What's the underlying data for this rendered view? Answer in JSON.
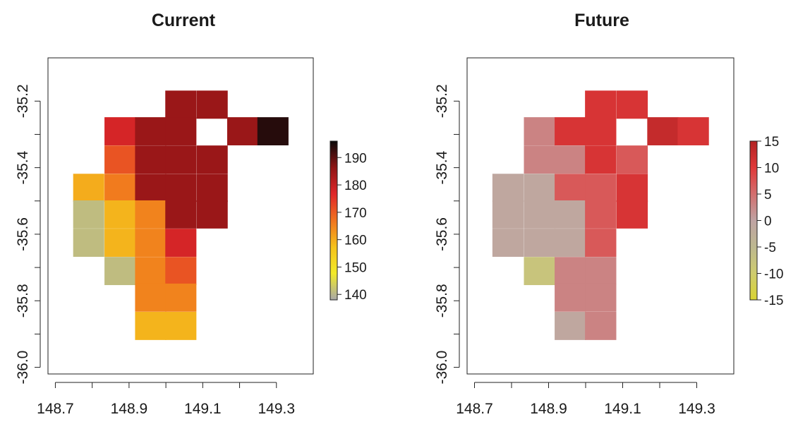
{
  "chart_data": [
    {
      "type": "heatmap",
      "title": "Current",
      "xlabel": "",
      "ylabel": "",
      "xlim": [
        148.68,
        149.4
      ],
      "ylim": [
        -36.02,
        -35.07
      ],
      "x_ticks": [
        "148.7",
        "148.9",
        "149.1",
        "149.3"
      ],
      "x_tick_values": [
        148.7,
        148.9,
        149.1,
        149.3
      ],
      "x_minor_ticks": [
        148.8,
        149.0,
        149.2
      ],
      "y_ticks": [
        "-35.2",
        "-35.4",
        "-35.6",
        "-35.8",
        "-36.0"
      ],
      "y_tick_values": [
        -35.2,
        -35.4,
        -35.6,
        -35.8,
        -36.0
      ],
      "y_minor_ticks": [
        -35.3,
        -35.5,
        -35.7,
        -35.9
      ],
      "grid": false,
      "cell_size": [
        0.0833,
        0.0833
      ],
      "cells": [
        {
          "x": 149.04,
          "y": -35.21,
          "v": 185
        },
        {
          "x": 149.125,
          "y": -35.21,
          "v": 185
        },
        {
          "x": 148.875,
          "y": -35.29,
          "v": 178
        },
        {
          "x": 148.958,
          "y": -35.29,
          "v": 185
        },
        {
          "x": 149.04,
          "y": -35.29,
          "v": 185
        },
        {
          "x": 149.208,
          "y": -35.29,
          "v": 185
        },
        {
          "x": 149.29,
          "y": -35.29,
          "v": 194
        },
        {
          "x": 148.875,
          "y": -35.375,
          "v": 171
        },
        {
          "x": 148.958,
          "y": -35.375,
          "v": 185
        },
        {
          "x": 149.04,
          "y": -35.375,
          "v": 185
        },
        {
          "x": 149.125,
          "y": -35.375,
          "v": 185
        },
        {
          "x": 148.79,
          "y": -35.46,
          "v": 160
        },
        {
          "x": 148.875,
          "y": -35.46,
          "v": 166
        },
        {
          "x": 148.958,
          "y": -35.46,
          "v": 185
        },
        {
          "x": 149.04,
          "y": -35.46,
          "v": 185
        },
        {
          "x": 149.125,
          "y": -35.46,
          "v": 185
        },
        {
          "x": 148.79,
          "y": -35.54,
          "v": 141
        },
        {
          "x": 148.875,
          "y": -35.54,
          "v": 159
        },
        {
          "x": 148.958,
          "y": -35.54,
          "v": 165
        },
        {
          "x": 149.04,
          "y": -35.54,
          "v": 185
        },
        {
          "x": 149.125,
          "y": -35.54,
          "v": 185
        },
        {
          "x": 148.79,
          "y": -35.625,
          "v": 141
        },
        {
          "x": 148.875,
          "y": -35.625,
          "v": 159
        },
        {
          "x": 148.958,
          "y": -35.625,
          "v": 165
        },
        {
          "x": 149.04,
          "y": -35.625,
          "v": 178
        },
        {
          "x": 148.875,
          "y": -35.71,
          "v": 141
        },
        {
          "x": 148.958,
          "y": -35.71,
          "v": 165
        },
        {
          "x": 149.04,
          "y": -35.71,
          "v": 171
        },
        {
          "x": 148.958,
          "y": -35.79,
          "v": 165
        },
        {
          "x": 149.04,
          "y": -35.79,
          "v": 165
        },
        {
          "x": 148.958,
          "y": -35.875,
          "v": 159
        },
        {
          "x": 149.04,
          "y": -35.875,
          "v": 159
        }
      ],
      "legend": {
        "range": [
          138,
          196
        ],
        "ticks": [
          140,
          150,
          160,
          170,
          180,
          190
        ],
        "tick_labels": [
          "140",
          "150",
          "160",
          "170",
          "180",
          "190"
        ],
        "colors": [
          "#a8a8a8",
          "#f2ea28",
          "#f5c21b",
          "#f0731e",
          "#e0272a",
          "#8f1515",
          "#0a0a0a"
        ]
      }
    },
    {
      "type": "heatmap",
      "title": "Future",
      "xlabel": "",
      "ylabel": "",
      "xlim": [
        148.68,
        149.4
      ],
      "ylim": [
        -36.02,
        -35.07
      ],
      "x_ticks": [
        "148.7",
        "148.9",
        "149.1",
        "149.3"
      ],
      "x_tick_values": [
        148.7,
        148.9,
        149.1,
        149.3
      ],
      "x_minor_ticks": [
        148.8,
        149.0,
        149.2
      ],
      "y_ticks": [
        "-35.2",
        "-35.4",
        "-35.6",
        "-35.8",
        "-36.0"
      ],
      "y_tick_values": [
        -35.2,
        -35.4,
        -35.6,
        -35.8,
        -36.0
      ],
      "y_minor_ticks": [
        -35.3,
        -35.5,
        -35.7,
        -35.9
      ],
      "grid": false,
      "cell_size": [
        0.0833,
        0.0833
      ],
      "cells": [
        {
          "x": 149.04,
          "y": -35.21,
          "v": 11
        },
        {
          "x": 149.125,
          "y": -35.21,
          "v": 11
        },
        {
          "x": 148.875,
          "y": -35.29,
          "v": 3
        },
        {
          "x": 148.958,
          "y": -35.29,
          "v": 11
        },
        {
          "x": 149.04,
          "y": -35.29,
          "v": 11
        },
        {
          "x": 149.208,
          "y": -35.29,
          "v": 13
        },
        {
          "x": 149.29,
          "y": -35.29,
          "v": 11
        },
        {
          "x": 148.875,
          "y": -35.375,
          "v": 3
        },
        {
          "x": 148.958,
          "y": -35.375,
          "v": 3
        },
        {
          "x": 149.04,
          "y": -35.375,
          "v": 11
        },
        {
          "x": 149.125,
          "y": -35.375,
          "v": 7
        },
        {
          "x": 148.79,
          "y": -35.46,
          "v": -1
        },
        {
          "x": 148.875,
          "y": -35.46,
          "v": -1
        },
        {
          "x": 148.958,
          "y": -35.46,
          "v": 7
        },
        {
          "x": 149.04,
          "y": -35.46,
          "v": 7
        },
        {
          "x": 149.125,
          "y": -35.46,
          "v": 11
        },
        {
          "x": 148.79,
          "y": -35.54,
          "v": -1
        },
        {
          "x": 148.875,
          "y": -35.54,
          "v": -1
        },
        {
          "x": 148.958,
          "y": -35.54,
          "v": -1
        },
        {
          "x": 149.04,
          "y": -35.54,
          "v": 7
        },
        {
          "x": 149.125,
          "y": -35.54,
          "v": 11
        },
        {
          "x": 148.79,
          "y": -35.625,
          "v": -1
        },
        {
          "x": 148.875,
          "y": -35.625,
          "v": -1
        },
        {
          "x": 148.958,
          "y": -35.625,
          "v": -1
        },
        {
          "x": 149.04,
          "y": -35.625,
          "v": 7
        },
        {
          "x": 148.875,
          "y": -35.71,
          "v": -8
        },
        {
          "x": 148.958,
          "y": -35.71,
          "v": 3
        },
        {
          "x": 149.04,
          "y": -35.71,
          "v": 3
        },
        {
          "x": 148.958,
          "y": -35.79,
          "v": 3
        },
        {
          "x": 149.04,
          "y": -35.79,
          "v": 3
        },
        {
          "x": 148.958,
          "y": -35.875,
          "v": -1
        },
        {
          "x": 149.04,
          "y": -35.875,
          "v": 3
        }
      ],
      "legend": {
        "range": [
          -15,
          15
        ],
        "ticks": [
          -15,
          -10,
          -5,
          0,
          5,
          10,
          15
        ],
        "tick_labels": [
          "-15",
          "-10",
          "-5",
          "0",
          "5",
          "10",
          "15"
        ],
        "colors": [
          "#d9d331",
          "#cfcc6e",
          "#bdb890",
          "#bfa3a3",
          "#d36e6e",
          "#e0393a",
          "#b22222"
        ]
      }
    }
  ],
  "colors": {
    "current_scale": [
      "#a8a8a8",
      "#f2ea28",
      "#f5c21b",
      "#f0731e",
      "#e0272a",
      "#8f1515",
      "#0a0a0a"
    ],
    "future_scale": [
      "#d9d331",
      "#cfcc6e",
      "#bdb890",
      "#bfa3a3",
      "#d36e6e",
      "#e0393a",
      "#b22222"
    ]
  }
}
